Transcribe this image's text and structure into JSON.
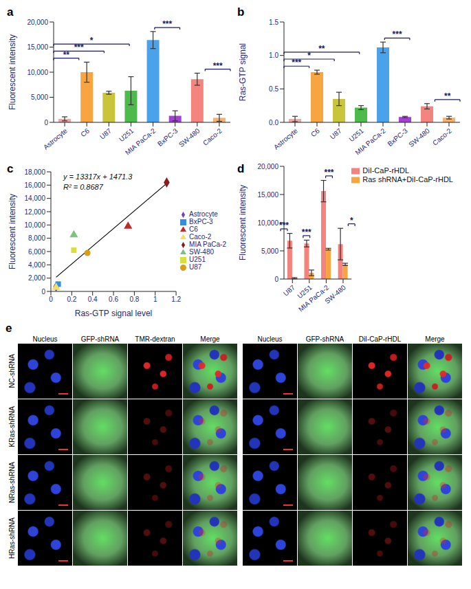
{
  "chart_data": [
    {
      "type": "bar",
      "title": "a",
      "ylabel": "Fluorescent intensity",
      "categories": [
        "Astrocyte",
        "C6",
        "U87",
        "U251",
        "MIA PaCa-2",
        "BxPC-3",
        "SW-480",
        "Caco-2"
      ],
      "values": [
        700,
        10000,
        5900,
        6300,
        16400,
        1300,
        8600,
        900
      ],
      "errors": [
        400,
        2000,
        300,
        2800,
        1700,
        1000,
        1200,
        700
      ],
      "colors": [
        "#f4a3a8",
        "#f7a541",
        "#c9c43a",
        "#4dbb4b",
        "#4aa3ea",
        "#a43fd4",
        "#f3857e",
        "#f6b26b"
      ],
      "ylim": [
        0,
        20000
      ],
      "yticks": [
        0,
        {
          "value": 5000,
          "label": "5,000"
        },
        {
          "value": 10000,
          "label": "10,000"
        },
        {
          "value": 15000,
          "label": "15,000"
        },
        {
          "value": 20000,
          "label": "20,000"
        }
      ],
      "annotations": [
        {
          "from": "Astrocyte",
          "to": "C6",
          "text": "**"
        },
        {
          "from": "Astrocyte",
          "to": "U87",
          "text": "***"
        },
        {
          "from": "Astrocyte",
          "to": "U251",
          "text": "*"
        },
        {
          "from": "MIA PaCa-2",
          "to": "BxPC-3",
          "text": "***"
        },
        {
          "from": "SW-480",
          "to": "Caco-2",
          "text": "***"
        }
      ]
    },
    {
      "type": "bar",
      "title": "b",
      "ylabel": "Ras-GTP signal",
      "categories": [
        "Astrocyte",
        "C6",
        "U87",
        "U251",
        "MIA PaCa-2",
        "BxPC-3",
        "SW-480",
        "Caco-2"
      ],
      "values": [
        0.05,
        0.75,
        0.35,
        0.22,
        1.12,
        0.08,
        0.24,
        0.07
      ],
      "errors": [
        0.04,
        0.03,
        0.1,
        0.03,
        0.08,
        0.01,
        0.04,
        0.02
      ],
      "colors": [
        "#f4a3a8",
        "#f7a541",
        "#c9c43a",
        "#4dbb4b",
        "#4aa3ea",
        "#a43fd4",
        "#f3857e",
        "#f6b26b"
      ],
      "ylim": [
        0,
        1.5
      ],
      "yticks": [
        {
          "value": 0,
          "label": "0.0"
        },
        0.5,
        {
          "value": 1,
          "label": "1.0"
        },
        1.5
      ],
      "annotations": [
        {
          "from": "Astrocyte",
          "to": "C6",
          "text": "***"
        },
        {
          "from": "Astrocyte",
          "to": "U87",
          "text": "*"
        },
        {
          "from": "Astrocyte",
          "to": "U251",
          "text": "**"
        },
        {
          "from": "MIA PaCa-2",
          "to": "BxPC-3",
          "text": "***"
        },
        {
          "from": "SW-480",
          "to": "Caco-2",
          "text": "**"
        }
      ]
    },
    {
      "type": "scatter",
      "title": "c",
      "xlabel": "Ras-GTP signal level",
      "ylabel": "Fluorescent intensity",
      "series": [
        {
          "name": "Astrocyte",
          "color": "#7b3fb5",
          "marker": "diamond",
          "x": [
            0.05
          ],
          "y": [
            700
          ]
        },
        {
          "name": "C6",
          "color": "#c0282a",
          "marker": "triangle",
          "x": [
            0.74
          ],
          "y": [
            9800
          ]
        },
        {
          "name": "U87",
          "color": "#d4a017",
          "marker": "circle",
          "x": [
            0.35
          ],
          "y": [
            5800
          ]
        },
        {
          "name": "U251",
          "color": "#d8e040",
          "marker": "square",
          "x": [
            0.22
          ],
          "y": [
            6200
          ]
        },
        {
          "name": "MIA PaCa-2",
          "color": "#8b1a1a",
          "marker": "diamond",
          "x": [
            1.11
          ],
          "y": [
            16400
          ]
        },
        {
          "name": "BxPC-3",
          "color": "#2f8fe0",
          "marker": "square",
          "x": [
            0.07
          ],
          "y": [
            1100
          ]
        },
        {
          "name": "SW-480",
          "color": "#80c080",
          "marker": "triangle",
          "x": [
            0.22
          ],
          "y": [
            8500
          ]
        },
        {
          "name": "Caco-2",
          "color": "#f0e060",
          "marker": "triangle",
          "x": [
            0.05
          ],
          "y": [
            600
          ]
        }
      ],
      "trendline": {
        "slope": 13317,
        "intercept": 1471.3
      },
      "annotations": [
        {
          "text": "y = 13317x + 1471.3"
        },
        {
          "text": "R² = 0.8687"
        }
      ],
      "xlim": [
        0,
        1.2
      ],
      "xticks": [
        0,
        0.2,
        0.4,
        0.6,
        0.8,
        1,
        1.2
      ],
      "ylim": [
        0,
        18000
      ],
      "yticks": [
        0,
        {
          "value": 2000,
          "label": "2,000"
        },
        {
          "value": 4000,
          "label": "4,000"
        },
        {
          "value": 6000,
          "label": "6,000"
        },
        {
          "value": 8000,
          "label": "8,000"
        },
        {
          "value": 10000,
          "label": "10,000"
        },
        {
          "value": 12000,
          "label": "12,000"
        },
        {
          "value": 14000,
          "label": "14,000"
        },
        {
          "value": 16000,
          "label": "16,000"
        },
        {
          "value": 18000,
          "label": "18,000"
        }
      ],
      "legend": "right"
    },
    {
      "type": "bar",
      "title": "d",
      "ylabel": "Fluorescent intensity",
      "categories": [
        "U87",
        "U251",
        "MIA PaCa-2",
        "SW-480"
      ],
      "series": [
        {
          "name": "DiI-CaP-rHDL",
          "color": "#f4837d",
          "values": [
            6800,
            6300,
            15600,
            6200
          ],
          "errors": [
            1300,
            600,
            1900,
            2800
          ]
        },
        {
          "name": "Ras shRNA+DiI-CaP-rHDL",
          "color": "#f7a541",
          "values": [
            150,
            1100,
            5300,
            2600
          ],
          "errors": [
            100,
            500,
            150,
            200
          ]
        }
      ],
      "ylim": [
        0,
        20000
      ],
      "yticks": [
        0,
        {
          "value": 5000,
          "label": "5,000"
        },
        {
          "value": 10000,
          "label": "10,000"
        },
        {
          "value": 15000,
          "label": "15,000"
        },
        {
          "value": 20000,
          "label": "20,000"
        }
      ],
      "annotations": [
        {
          "category": "U87",
          "text": "***"
        },
        {
          "category": "U251",
          "text": "***"
        },
        {
          "category": "MIA PaCa-2",
          "text": "***"
        },
        {
          "category": "SW-480",
          "text": "*"
        }
      ],
      "legend": "top right"
    }
  ],
  "images": {
    "title": "e",
    "groups": [
      {
        "columns": [
          "Nucleus",
          "GFP-shRNA",
          "TMR-dextran",
          "Merge"
        ]
      },
      {
        "columns": [
          "Nucleus",
          "GFP-shRNA",
          "DiI-CaP-rHDL",
          "Merge"
        ]
      }
    ],
    "rows": [
      "NC-shRNA",
      "KRas-shRNA",
      "NRas-shRNA",
      "HRas-shRNA"
    ]
  }
}
